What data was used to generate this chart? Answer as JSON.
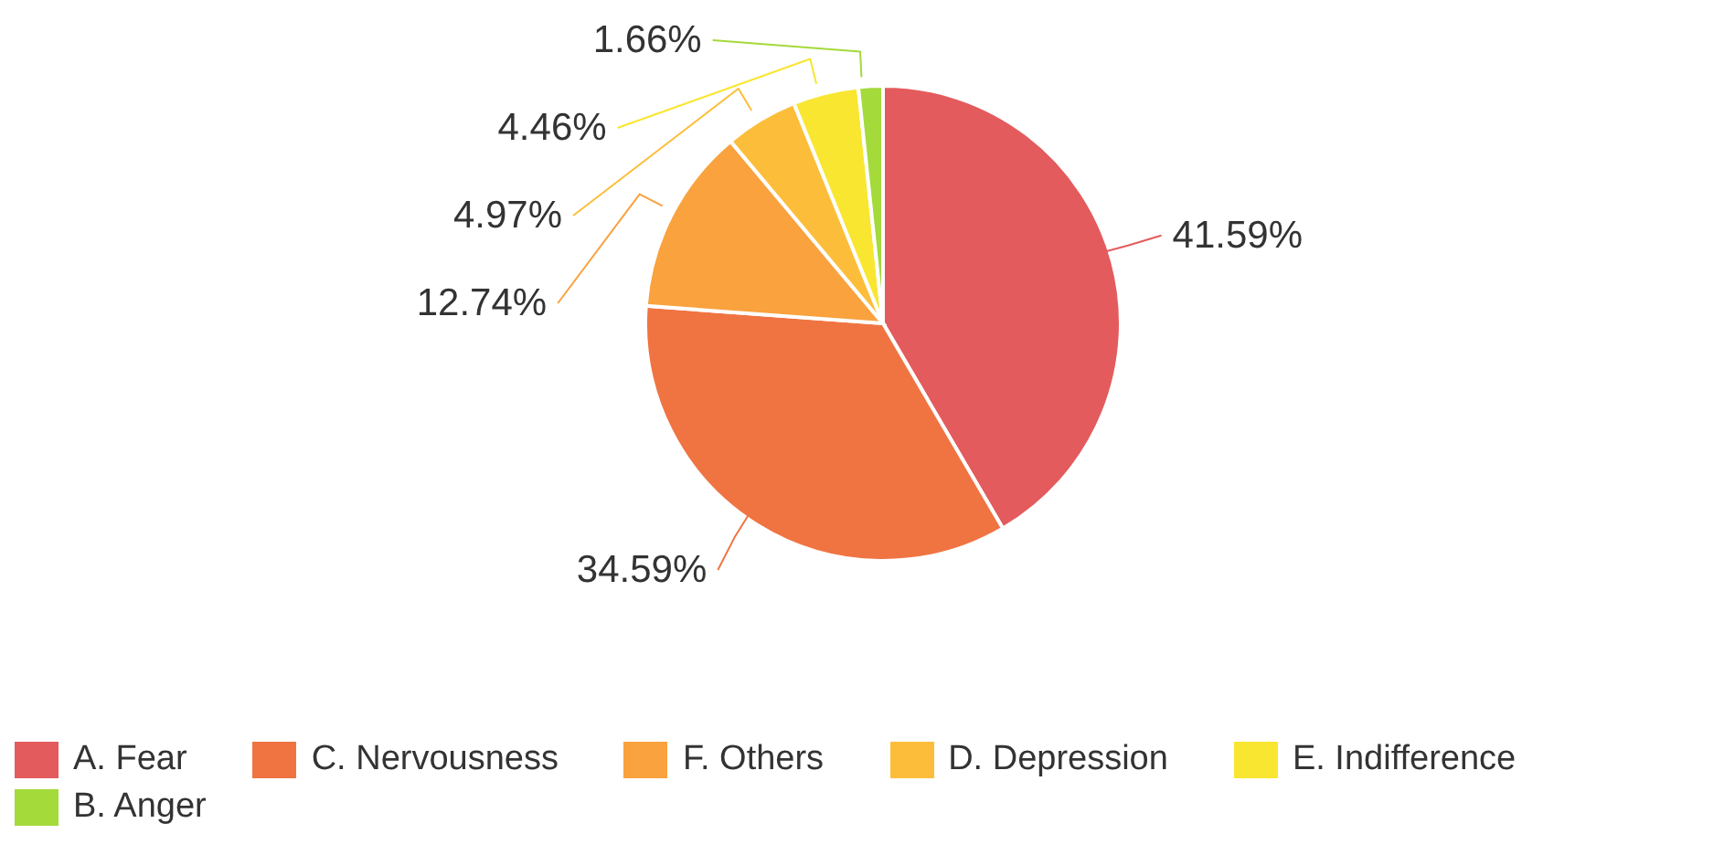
{
  "chart_data": {
    "type": "pie",
    "categories": [
      "A. Fear",
      "C. Nervousness",
      "F. Others",
      "D. Depression",
      "E. Indifference",
      "B. Anger"
    ],
    "values": [
      41.59,
      34.59,
      12.74,
      4.97,
      4.46,
      1.66
    ],
    "value_labels": [
      "41.59%",
      "34.59%",
      "12.74%",
      "4.97%",
      "4.46%",
      "1.66%"
    ],
    "colors": [
      "#e35b5d",
      "#f07442",
      "#f9a23e",
      "#fcbe3a",
      "#f9e631",
      "#a4da3a"
    ],
    "legend": "bottom left"
  }
}
